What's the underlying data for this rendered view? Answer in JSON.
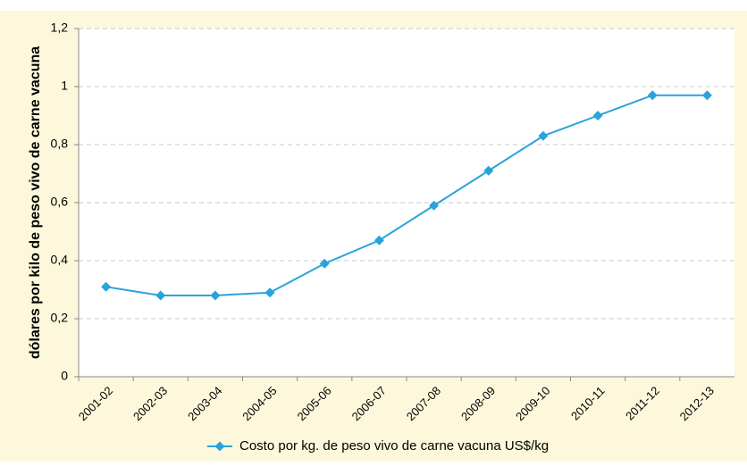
{
  "chart_data": {
    "type": "line",
    "y_label": "dólares por kilo de peso vivo de  carne vacuna",
    "categories": [
      "2001-02",
      "2002-03",
      "2003-04",
      "2004-05",
      "2005-06",
      "2006-07",
      "2007-08",
      "2008-09",
      "2009-10",
      "2010-11",
      "2011-12",
      "2012-13"
    ],
    "series": [
      {
        "name": "Costo por kg. de peso vivo de carne vacuna US$/kg",
        "color": "#29a3dc",
        "values": [
          0.31,
          0.28,
          0.28,
          0.29,
          0.39,
          0.47,
          0.59,
          0.71,
          0.83,
          0.9,
          0.97,
          0.97
        ]
      }
    ],
    "ylim": [
      0,
      1.2
    ],
    "yticks": [
      0,
      {
        "value": 0.2,
        "label": "0,2"
      },
      {
        "value": 0.4,
        "label": "0,4"
      },
      {
        "value": 0.6,
        "label": "0,6"
      },
      {
        "value": 0.8,
        "label": "0,8"
      },
      1,
      {
        "value": 1.2,
        "label": "1,2"
      }
    ],
    "grid": true,
    "legend": "bottom"
  }
}
